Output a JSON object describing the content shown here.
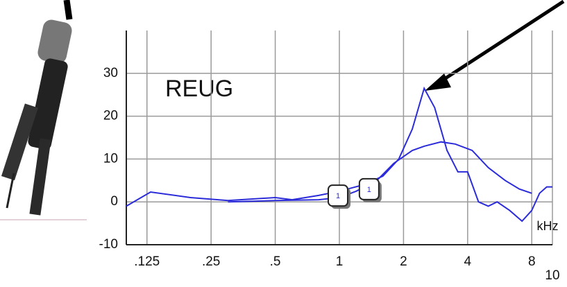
{
  "chart_data": {
    "type": "line",
    "annotation": "REUG",
    "x_label": "kHz",
    "xscale": "log",
    "xlim": [
      0.1,
      10
    ],
    "xticks": [
      {
        "value": 0.125,
        "label": ".125"
      },
      {
        "value": 0.25,
        "label": ".25"
      },
      {
        "value": 0.5,
        "label": ".5"
      },
      1,
      2,
      4,
      8,
      10
    ],
    "ylim": [
      -10,
      40
    ],
    "yticks": [
      -10,
      0,
      10,
      20,
      30
    ],
    "grid": true,
    "series": [
      {
        "color": "#2b2bd9",
        "x": [
          0.1,
          0.13,
          0.2,
          0.3,
          0.5,
          0.6,
          0.8,
          1,
          1.3,
          1.6,
          1.9,
          2.2,
          2.5,
          2.8,
          3.2,
          3.6,
          4.0,
          4.5,
          5,
          5.5,
          6.3,
          7.2,
          8,
          8.7,
          9.4,
          10
        ],
        "values": [
          -1,
          2.3,
          1,
          0.3,
          1,
          0.5,
          1.5,
          2.5,
          4,
          6,
          10,
          17,
          26.5,
          22,
          12,
          7,
          7,
          0,
          -1,
          0,
          -2,
          -4.5,
          -2,
          2,
          3.5,
          3.5
        ]
      },
      {
        "color": "#2b2bd9",
        "x": [
          0.3,
          0.5,
          0.8,
          1,
          1.2,
          1.5,
          1.8,
          2.2,
          2.5,
          3,
          3.5,
          4.2,
          5,
          6,
          7,
          8
        ],
        "values": [
          0,
          0.3,
          0.5,
          1,
          2.5,
          5,
          9,
          12,
          13,
          14,
          13.5,
          12,
          8,
          5,
          3,
          2
        ]
      }
    ],
    "markers": [
      {
        "x": 1,
        "y": 1.3,
        "label": "1"
      },
      {
        "x": 1.4,
        "y": 2.8,
        "label": "1"
      }
    ]
  }
}
